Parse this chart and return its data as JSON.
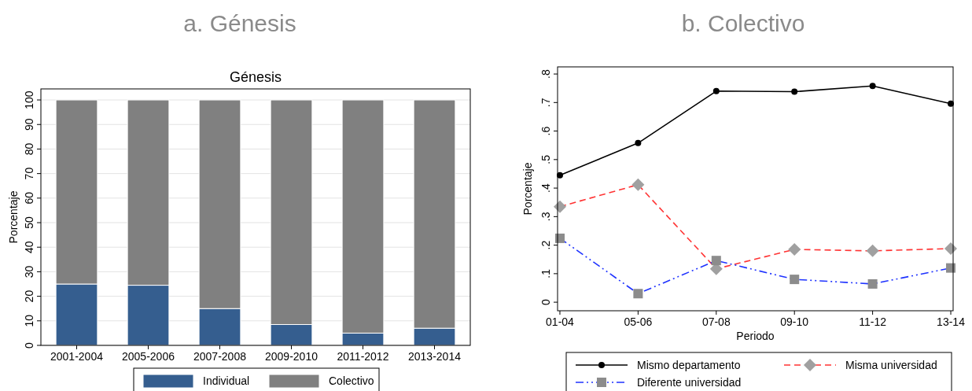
{
  "chart_data": [
    {
      "type": "bar",
      "title": "a. Génesis",
      "subtitle": "Génesis",
      "ylabel": "Porcentaje",
      "stacked": true,
      "categories": [
        "2001-2004",
        "2005-2006",
        "2007-2008",
        "2009-2010",
        "2011-2012",
        "2013-2014"
      ],
      "series": [
        {
          "name": "Individual",
          "color": "#355e8f",
          "values": [
            25,
            24.5,
            15,
            8.5,
            5,
            7
          ]
        },
        {
          "name": "Colectivo",
          "color": "#808080",
          "values": [
            75,
            75.5,
            85,
            91.5,
            95,
            93
          ]
        }
      ],
      "ylim": [
        0,
        104.5
      ],
      "yticks": [
        0,
        10,
        20,
        30,
        40,
        50,
        60,
        70,
        80,
        90,
        100
      ],
      "grid": "y",
      "legend": "bottom"
    },
    {
      "type": "line",
      "title": "b. Colectivo",
      "xlabel": "Periodo",
      "ylabel": "Porcentaje",
      "categories": [
        "01-04",
        "05-06",
        "07-08",
        "09-10",
        "11-12",
        "13-14"
      ],
      "series": [
        {
          "name": "Mismo departamento",
          "color": "#000000",
          "marker": "circle",
          "line_style": "solid",
          "values": [
            0.445,
            0.558,
            0.74,
            0.738,
            0.758,
            0.696
          ]
        },
        {
          "name": "Misma universidad",
          "color": "#ff3333",
          "marker": "diamond",
          "line_style": "dashed",
          "values": [
            0.335,
            0.412,
            0.117,
            0.185,
            0.18,
            0.188
          ]
        },
        {
          "name": "Diferente universidad",
          "color": "#1f33ff",
          "marker": "square",
          "line_style": "dashdot",
          "values": [
            0.224,
            0.03,
            0.146,
            0.08,
            0.064,
            0.12
          ]
        }
      ],
      "ylim": [
        -0.03,
        0.825
      ],
      "yticks": [
        {
          "value": 0,
          "label": "0"
        },
        {
          "value": 0.1,
          "label": ".1"
        },
        {
          "value": 0.2,
          "label": ".2"
        },
        {
          "value": 0.3,
          "label": ".3"
        },
        {
          "value": 0.4,
          "label": ".4"
        },
        {
          "value": 0.5,
          "label": ".5"
        },
        {
          "value": 0.6,
          "label": ".6"
        },
        {
          "value": 0.7,
          "label": ".7"
        },
        {
          "value": 0.8,
          "label": ".8"
        }
      ],
      "grid": false,
      "legend": "bottom"
    }
  ]
}
